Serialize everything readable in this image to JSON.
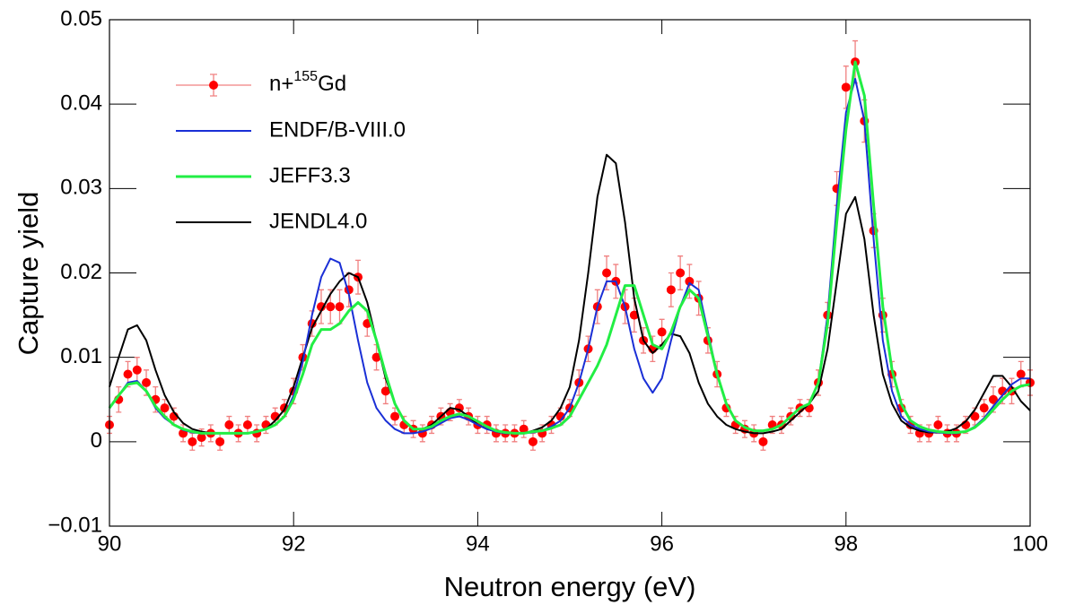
{
  "chart_data": {
    "type": "line",
    "xlabel": "Neutron energy (eV)",
    "ylabel": "Capture yield",
    "xlim": [
      90,
      100
    ],
    "xticks": [
      90,
      92,
      94,
      96,
      98,
      100
    ],
    "ylim": [
      -0.01,
      0.05
    ],
    "yticks": [
      {
        "value": -0.01,
        "label": "−0.01"
      },
      0,
      0.01,
      0.02,
      0.03,
      0.04,
      0.05
    ],
    "legend": "upper left",
    "x": [
      90,
      90.1,
      90.2,
      90.3,
      90.4,
      90.5,
      90.6,
      90.7,
      90.8,
      90.9,
      91,
      91.1,
      91.2,
      91.3,
      91.4,
      91.5,
      91.6,
      91.7,
      91.8,
      91.9,
      92,
      92.1,
      92.2,
      92.3,
      92.4,
      92.5,
      92.6,
      92.7,
      92.8,
      92.9,
      93,
      93.1,
      93.2,
      93.3,
      93.4,
      93.5,
      93.6,
      93.7,
      93.8,
      93.9,
      94,
      94.1,
      94.2,
      94.3,
      94.4,
      94.5,
      94.6,
      94.7,
      94.8,
      94.9,
      95,
      95.1,
      95.2,
      95.3,
      95.4,
      95.5,
      95.6,
      95.7,
      95.8,
      95.9,
      96,
      96.1,
      96.2,
      96.3,
      96.4,
      96.5,
      96.6,
      96.7,
      96.8,
      96.9,
      97,
      97.1,
      97.2,
      97.3,
      97.4,
      97.5,
      97.6,
      97.7,
      97.8,
      97.9,
      98,
      98.1,
      98.2,
      98.3,
      98.4,
      98.5,
      98.6,
      98.7,
      98.8,
      98.9,
      99,
      99.1,
      99.2,
      99.3,
      99.4,
      99.5,
      99.6,
      99.7,
      99.8,
      99.9,
      100
    ],
    "series": [
      {
        "name": [
          "n+",
          "155",
          "Gd"
        ],
        "color": "#ff0000",
        "error_color": "#f08080",
        "mode": "markers",
        "values": [
          0.002,
          0.005,
          0.008,
          0.0085,
          0.007,
          0.005,
          0.004,
          0.003,
          0.001,
          0.0,
          0.0005,
          0.001,
          0.0,
          0.002,
          0.001,
          0.002,
          0.001,
          0.002,
          0.003,
          0.004,
          0.006,
          0.01,
          0.014,
          0.016,
          0.016,
          0.016,
          0.018,
          0.0195,
          0.014,
          0.01,
          0.006,
          0.003,
          0.002,
          0.0015,
          0.001,
          0.002,
          0.003,
          0.0035,
          0.004,
          0.003,
          0.002,
          0.002,
          0.001,
          0.001,
          0.001,
          0.0015,
          0.0,
          0.001,
          0.002,
          0.003,
          0.004,
          0.007,
          0.011,
          0.016,
          0.02,
          0.019,
          0.016,
          0.015,
          0.012,
          0.011,
          0.013,
          0.018,
          0.02,
          0.019,
          0.017,
          0.012,
          0.008,
          0.004,
          0.002,
          0.0015,
          0.001,
          0.0,
          0.002,
          0.002,
          0.003,
          0.004,
          0.004,
          0.007,
          0.015,
          0.03,
          0.042,
          0.045,
          0.038,
          0.025,
          0.015,
          0.008,
          0.004,
          0.002,
          0.001,
          0.001,
          0.002,
          0.001,
          0.001,
          0.002,
          0.003,
          0.004,
          0.005,
          0.006,
          0.006,
          0.008,
          0.007
        ],
        "errors": [
          0.001,
          0.0015,
          0.0015,
          0.0015,
          0.0015,
          0.0015,
          0.001,
          0.001,
          0.001,
          0.001,
          0.001,
          0.001,
          0.001,
          0.001,
          0.001,
          0.001,
          0.001,
          0.001,
          0.001,
          0.001,
          0.0015,
          0.0015,
          0.0015,
          0.002,
          0.002,
          0.002,
          0.002,
          0.002,
          0.0015,
          0.0015,
          0.0015,
          0.001,
          0.001,
          0.001,
          0.001,
          0.001,
          0.001,
          0.001,
          0.001,
          0.001,
          0.001,
          0.001,
          0.001,
          0.001,
          0.001,
          0.001,
          0.001,
          0.001,
          0.001,
          0.001,
          0.001,
          0.0015,
          0.0015,
          0.002,
          0.002,
          0.002,
          0.002,
          0.002,
          0.0015,
          0.0015,
          0.0015,
          0.002,
          0.002,
          0.002,
          0.002,
          0.0015,
          0.0015,
          0.001,
          0.001,
          0.001,
          0.001,
          0.001,
          0.001,
          0.001,
          0.001,
          0.001,
          0.001,
          0.0015,
          0.0015,
          0.002,
          0.0025,
          0.0025,
          0.0025,
          0.002,
          0.002,
          0.0015,
          0.001,
          0.001,
          0.001,
          0.001,
          0.001,
          0.001,
          0.001,
          0.001,
          0.001,
          0.001,
          0.0015,
          0.0015,
          0.0015,
          0.0015,
          0.0015
        ]
      },
      {
        "name": "ENDF/B-VIII.0",
        "color": "#1a2fd6",
        "mode": "line",
        "values": [
          0.004,
          0.0055,
          0.007,
          0.0072,
          0.006,
          0.004,
          0.0028,
          0.002,
          0.0014,
          0.0011,
          0.001,
          0.001,
          0.001,
          0.001,
          0.001,
          0.001,
          0.0012,
          0.0015,
          0.002,
          0.003,
          0.0055,
          0.0095,
          0.015,
          0.0195,
          0.0217,
          0.0212,
          0.0175,
          0.012,
          0.007,
          0.004,
          0.0025,
          0.0015,
          0.001,
          0.001,
          0.0012,
          0.0016,
          0.0022,
          0.0028,
          0.003,
          0.0026,
          0.002,
          0.0015,
          0.0012,
          0.001,
          0.001,
          0.001,
          0.0011,
          0.0013,
          0.0018,
          0.0025,
          0.004,
          0.007,
          0.011,
          0.016,
          0.019,
          0.019,
          0.016,
          0.011,
          0.0075,
          0.0058,
          0.0075,
          0.012,
          0.016,
          0.0188,
          0.018,
          0.013,
          0.008,
          0.0045,
          0.0025,
          0.0017,
          0.0013,
          0.0013,
          0.0015,
          0.002,
          0.003,
          0.004,
          0.0045,
          0.007,
          0.015,
          0.028,
          0.039,
          0.043,
          0.038,
          0.024,
          0.012,
          0.006,
          0.003,
          0.002,
          0.0015,
          0.0012,
          0.0011,
          0.001,
          0.001,
          0.0012,
          0.0018,
          0.0028,
          0.0042,
          0.0055,
          0.0068,
          0.0075,
          0.0075
        ]
      },
      {
        "name": "JEFF3.3",
        "color": "#22ee44",
        "mode": "line",
        "values": [
          0.004,
          0.0055,
          0.0068,
          0.007,
          0.006,
          0.0042,
          0.003,
          0.002,
          0.0015,
          0.0012,
          0.001,
          0.001,
          0.001,
          0.001,
          0.001,
          0.001,
          0.0012,
          0.0015,
          0.002,
          0.003,
          0.005,
          0.008,
          0.0115,
          0.0133,
          0.0133,
          0.014,
          0.0155,
          0.0165,
          0.0155,
          0.012,
          0.008,
          0.0045,
          0.0025,
          0.0015,
          0.0015,
          0.0018,
          0.0025,
          0.003,
          0.0033,
          0.003,
          0.0024,
          0.0018,
          0.0013,
          0.0011,
          0.001,
          0.001,
          0.0012,
          0.0013,
          0.0016,
          0.002,
          0.003,
          0.005,
          0.007,
          0.009,
          0.0115,
          0.015,
          0.0185,
          0.0185,
          0.015,
          0.0115,
          0.011,
          0.013,
          0.016,
          0.018,
          0.017,
          0.0125,
          0.008,
          0.0045,
          0.0025,
          0.0017,
          0.0013,
          0.0013,
          0.0015,
          0.002,
          0.003,
          0.004,
          0.0045,
          0.007,
          0.014,
          0.026,
          0.037,
          0.045,
          0.041,
          0.028,
          0.016,
          0.0085,
          0.0045,
          0.0025,
          0.0018,
          0.0014,
          0.0012,
          0.0011,
          0.0011,
          0.0012,
          0.0017,
          0.0026,
          0.0038,
          0.005,
          0.006,
          0.0066,
          0.0068
        ]
      },
      {
        "name": "JENDL4.0",
        "color": "#000000",
        "mode": "line",
        "values": [
          0.0065,
          0.01,
          0.0133,
          0.0138,
          0.012,
          0.0085,
          0.0055,
          0.0035,
          0.0022,
          0.0015,
          0.0012,
          0.001,
          0.001,
          0.001,
          0.001,
          0.001,
          0.0012,
          0.0015,
          0.0025,
          0.0038,
          0.0065,
          0.01,
          0.0135,
          0.0155,
          0.0175,
          0.019,
          0.02,
          0.0195,
          0.0165,
          0.012,
          0.0075,
          0.0045,
          0.0025,
          0.0015,
          0.0015,
          0.002,
          0.003,
          0.004,
          0.0038,
          0.003,
          0.002,
          0.0015,
          0.0012,
          0.001,
          0.001,
          0.001,
          0.0013,
          0.0017,
          0.0025,
          0.004,
          0.0065,
          0.012,
          0.02,
          0.029,
          0.034,
          0.033,
          0.026,
          0.017,
          0.012,
          0.0105,
          0.0115,
          0.0128,
          0.0125,
          0.0105,
          0.007,
          0.0045,
          0.003,
          0.002,
          0.0015,
          0.0012,
          0.001,
          0.001,
          0.0012,
          0.0015,
          0.0025,
          0.0035,
          0.0045,
          0.006,
          0.011,
          0.019,
          0.027,
          0.029,
          0.024,
          0.015,
          0.008,
          0.0045,
          0.0025,
          0.0017,
          0.0013,
          0.0011,
          0.0011,
          0.0012,
          0.0016,
          0.0024,
          0.0038,
          0.0058,
          0.0078,
          0.0078,
          0.0065,
          0.0048,
          0.0037
        ]
      }
    ]
  }
}
